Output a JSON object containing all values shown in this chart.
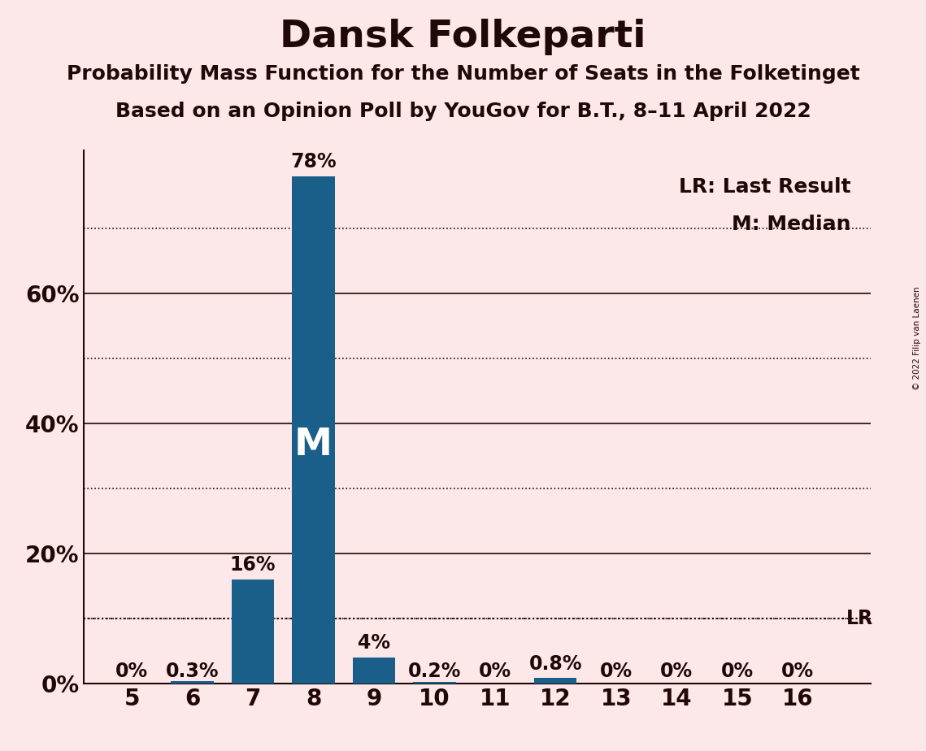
{
  "title": "Dansk Folkeparti",
  "subtitle1": "Probability Mass Function for the Number of Seats in the Folketinget",
  "subtitle2": "Based on an Opinion Poll by YouGov for B.T., 8–11 April 2022",
  "copyright": "© 2022 Filip van Laenen",
  "seats": [
    5,
    6,
    7,
    8,
    9,
    10,
    11,
    12,
    13,
    14,
    15,
    16
  ],
  "probabilities": [
    0.0,
    0.3,
    16.0,
    78.0,
    4.0,
    0.2,
    0.0,
    0.8,
    0.0,
    0.0,
    0.0,
    0.0
  ],
  "bar_color": "#1a5f8a",
  "background_color": "#fce8e8",
  "median_seat": 8,
  "last_result_value": 10.0,
  "legend_lr": "LR: Last Result",
  "legend_m": "M: Median",
  "ylim": [
    0,
    82
  ],
  "solid_lines": [
    20,
    40,
    60
  ],
  "dotted_lines": [
    10,
    30,
    50,
    70
  ],
  "ytick_vals": [
    0,
    20,
    40,
    60
  ],
  "ytick_labels": [
    "0%",
    "20%",
    "40%",
    "60%"
  ],
  "title_fontsize": 34,
  "subtitle_fontsize": 18,
  "label_fontsize": 17,
  "tick_fontsize": 20,
  "legend_fontsize": 18,
  "text_color": "#200808"
}
